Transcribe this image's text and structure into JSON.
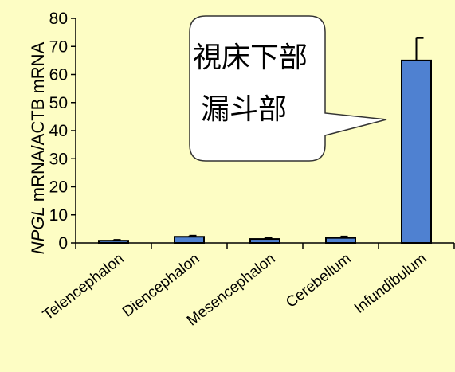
{
  "colors": {
    "background": "#FDFDC4",
    "bar_fill": "#4F81D1",
    "bar_stroke": "#000000",
    "callout_fill": "#FFFFFF",
    "callout_stroke": "#333333"
  },
  "chart_data": {
    "type": "bar",
    "categories": [
      "Telencephalon",
      "Diencephalon",
      "Mesencephalon",
      "Cerebellum",
      "Infundibulum"
    ],
    "values": [
      0.8,
      2.2,
      1.4,
      1.8,
      65
    ],
    "errors": [
      0.3,
      0.4,
      0.4,
      0.5,
      8
    ],
    "ylabel_italic": "NPGL",
    "ylabel_rest": " mRNA/ACTB mRNA",
    "ylim": [
      0,
      80
    ],
    "yticks": [
      0,
      10,
      20,
      30,
      40,
      50,
      60,
      70,
      80
    ],
    "grid": false,
    "legend": "none"
  },
  "callout": {
    "line1": "視床下部",
    "line2": "漏斗部"
  }
}
